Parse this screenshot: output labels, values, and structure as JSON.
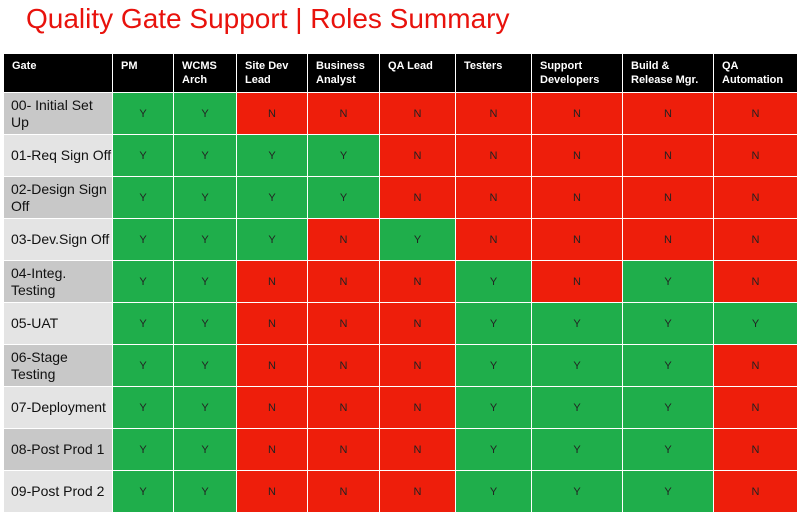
{
  "title": "Quality Gate Support | Roles Summary",
  "table": {
    "header": [
      "Gate",
      "PM",
      "WCMS Arch",
      "Site Dev Lead",
      "Business Analyst",
      "QA Lead",
      "Testers",
      "Support Developers",
      "Build & Release Mgr.",
      "QA Automation"
    ],
    "rows": [
      [
        "00- Initial Set Up",
        "Y",
        "Y",
        "N",
        "N",
        "N",
        "N",
        "N",
        "N",
        "N"
      ],
      [
        "01-Req Sign Off",
        "Y",
        "Y",
        "Y",
        "Y",
        "N",
        "N",
        "N",
        "N",
        "N"
      ],
      [
        "02-Design Sign Off",
        "Y",
        "Y",
        "Y",
        "Y",
        "N",
        "N",
        "N",
        "N",
        "N"
      ],
      [
        "03-Dev.Sign Off",
        "Y",
        "Y",
        "Y",
        "N",
        "Y",
        "N",
        "N",
        "N",
        "N"
      ],
      [
        "04-Integ. Testing",
        "Y",
        "Y",
        "N",
        "N",
        "N",
        "Y",
        "N",
        "Y",
        "N"
      ],
      [
        "05-UAT",
        "Y",
        "Y",
        "N",
        "N",
        "N",
        "Y",
        "Y",
        "Y",
        "Y"
      ],
      [
        "06-Stage Testing",
        "Y",
        "Y",
        "N",
        "N",
        "N",
        "Y",
        "Y",
        "Y",
        "N"
      ],
      [
        "07-Deployment",
        "Y",
        "Y",
        "N",
        "N",
        "N",
        "Y",
        "Y",
        "Y",
        "N"
      ],
      [
        "08-Post Prod 1",
        "Y",
        "Y",
        "N",
        "N",
        "N",
        "Y",
        "Y",
        "Y",
        "N"
      ],
      [
        "09-Post Prod 2",
        "Y",
        "Y",
        "N",
        "N",
        "N",
        "Y",
        "Y",
        "Y",
        "N"
      ]
    ]
  }
}
